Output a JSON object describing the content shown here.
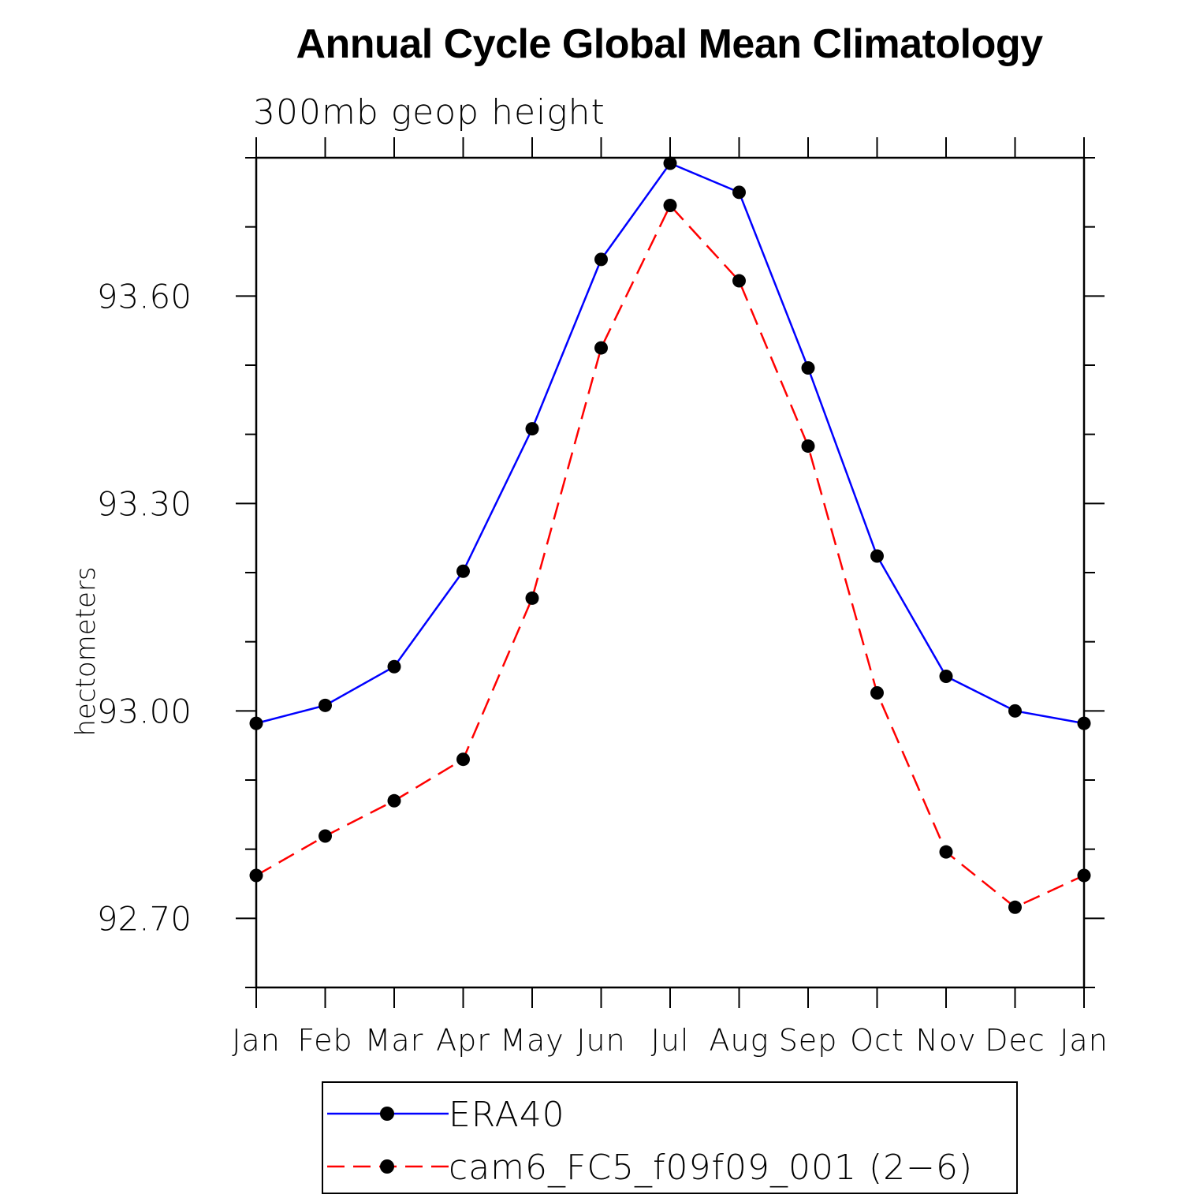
{
  "chart_data": {
    "type": "line",
    "title": "Annual Cycle Global Mean Climatology",
    "subtitle": "300mb geop height",
    "xlabel": "",
    "ylabel": "hectometers",
    "categories": [
      "Jan",
      "Feb",
      "Mar",
      "Apr",
      "May",
      "Jun",
      "Jul",
      "Aug",
      "Sep",
      "Oct",
      "Nov",
      "Dec",
      "Jan"
    ],
    "ylim": [
      92.6,
      93.8
    ],
    "yticks": [
      92.7,
      93.0,
      93.3,
      93.6
    ],
    "ytick_labels": [
      "92.70",
      "93.00",
      "93.30",
      "93.60"
    ],
    "yminor_step": 0.1,
    "grid": false,
    "legend_position": "bottom-center",
    "series": [
      {
        "name": "ERA40",
        "color": "#0000ff",
        "dash": "solid",
        "marker": "filled-circle",
        "marker_color": "#000000",
        "values": [
          92.982,
          93.008,
          93.064,
          93.202,
          93.408,
          93.653,
          93.792,
          93.75,
          93.496,
          93.224,
          93.05,
          93.0,
          92.982
        ]
      },
      {
        "name": "cam6_FC5_f09f09_001 (2−6)",
        "color": "#ff0000",
        "dash": "dashed",
        "marker": "filled-circle",
        "marker_color": "#000000",
        "values": [
          92.762,
          92.819,
          92.87,
          92.93,
          93.163,
          93.525,
          93.731,
          93.622,
          93.383,
          93.026,
          92.796,
          92.716,
          92.762
        ]
      }
    ]
  }
}
